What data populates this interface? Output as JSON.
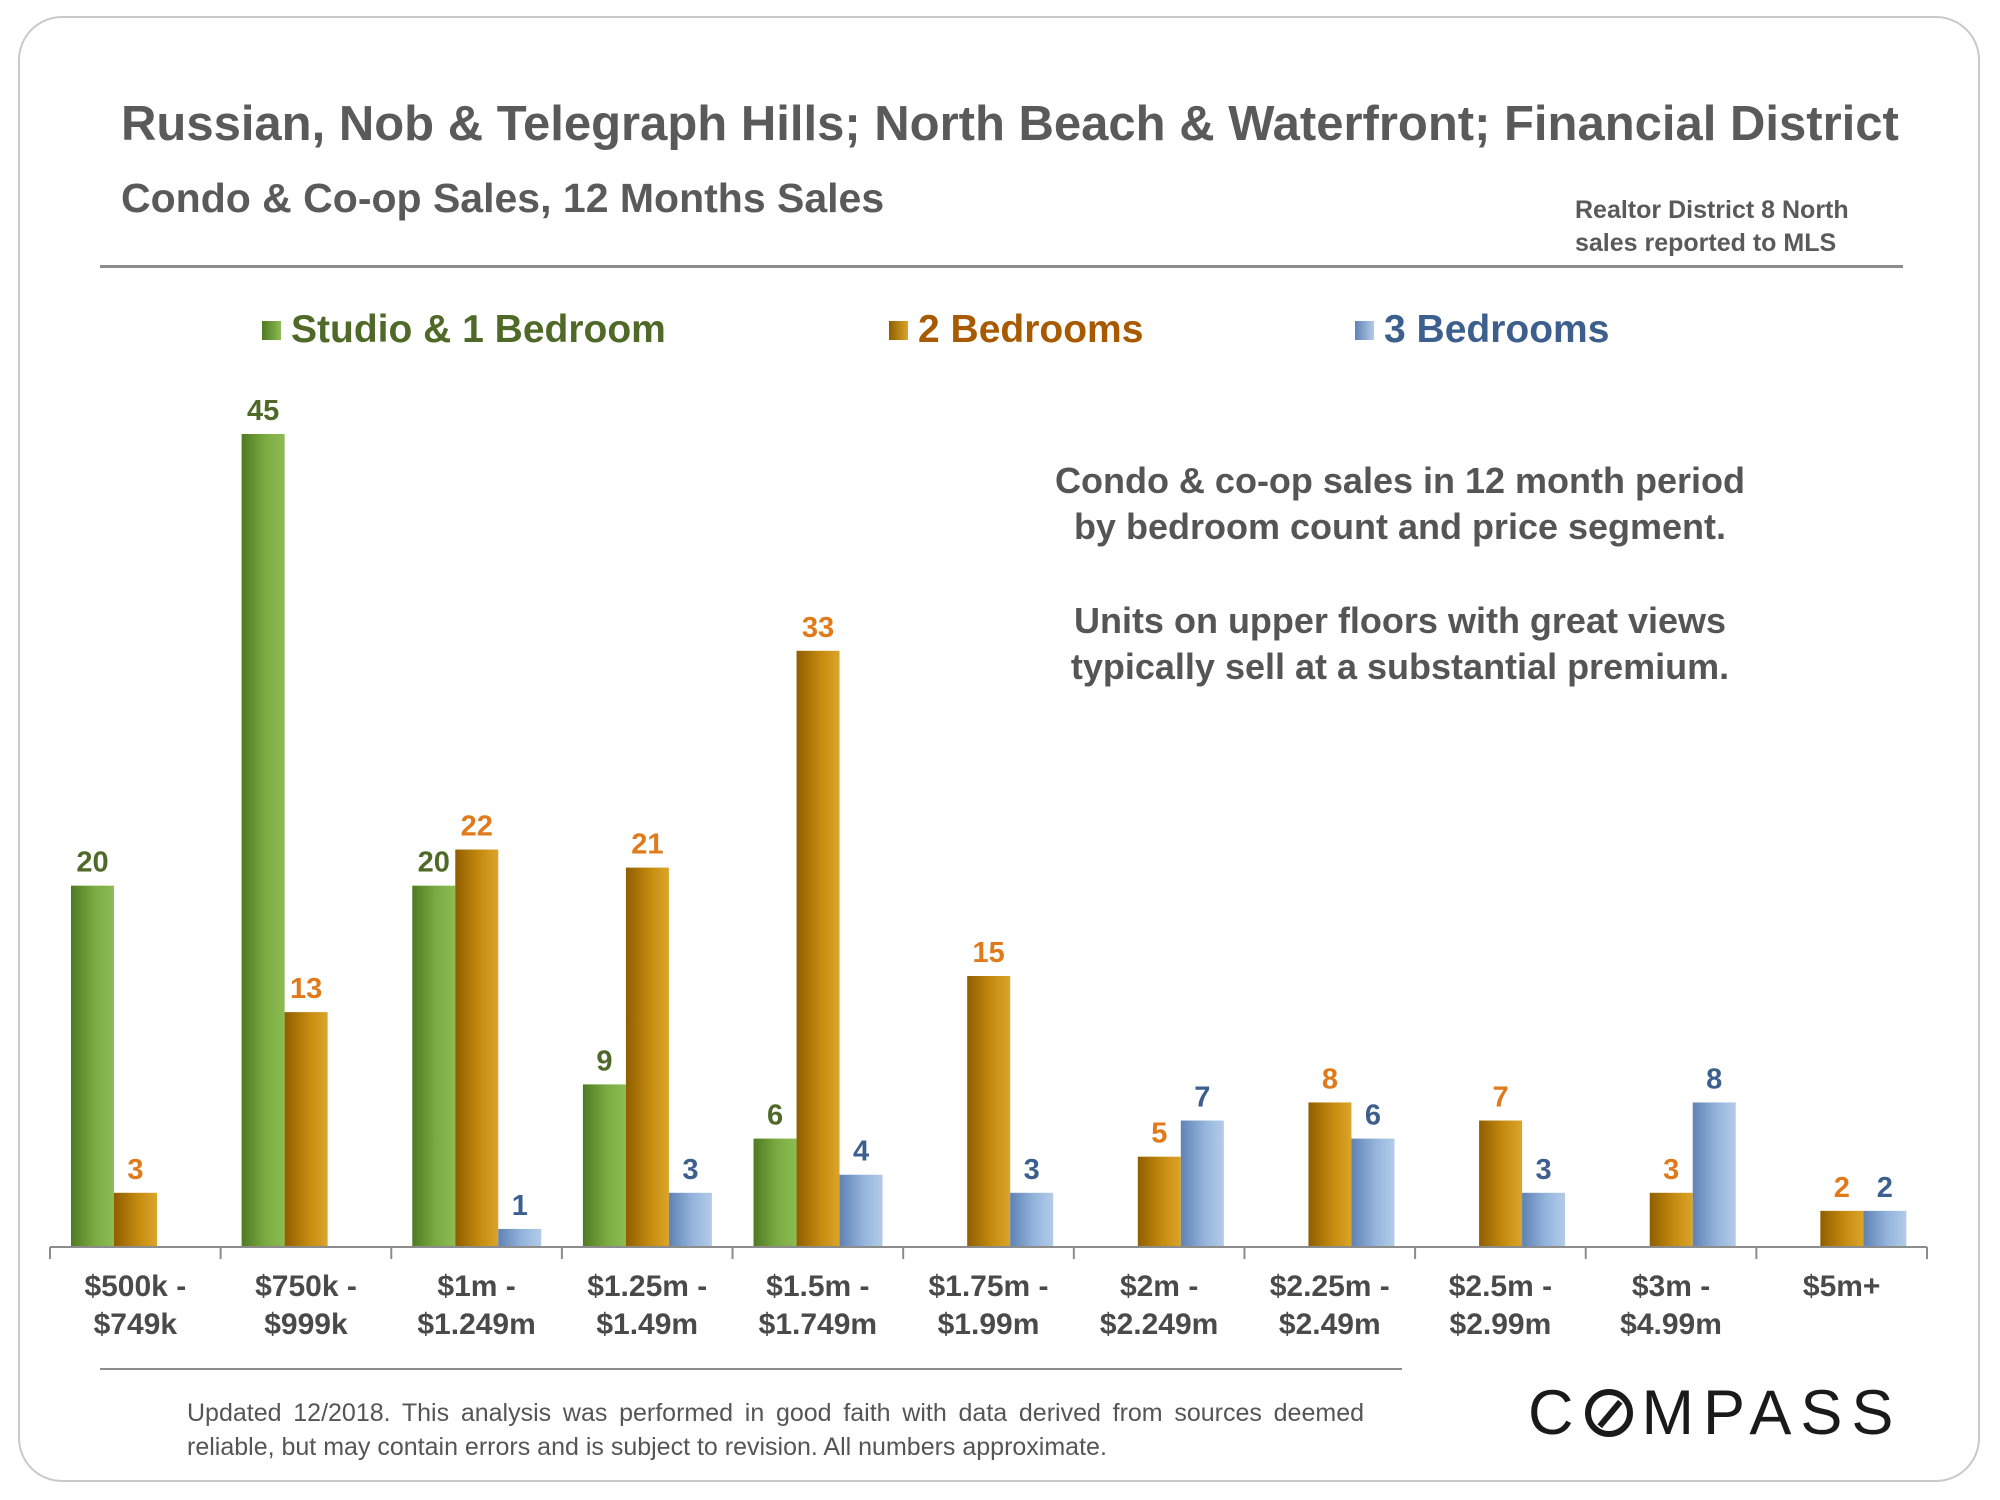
{
  "header": {
    "title": "Russian, Nob & Telegraph Hills; North Beach & Waterfront; Financial District",
    "subtitle": "Condo & Co-op Sales, 12 Months Sales",
    "source_line1": "Realtor District 8 North",
    "source_line2": "sales reported to MLS"
  },
  "annotation": {
    "line1": "Condo & co-op sales in 12 month period",
    "line2": "by bedroom count and price segment.",
    "line3": "Units on upper floors with great views",
    "line4": "typically sell at a substantial premium."
  },
  "footer": {
    "note": "Updated 12/2018. This analysis was performed in good faith with data derived from sources deemed reliable, but may contain errors and is subject to revision. All numbers approximate.",
    "logo_prefix": "C",
    "logo_suffix": "MPASS"
  },
  "colors": {
    "studio": "#6e9a3c",
    "studio_label": "#4f6a28",
    "two_bed": "#c48a0e",
    "two_bed_legend": "#a85a00",
    "two_bed_label": "#e07a1a",
    "three_bed": "#8fb0d8",
    "three_bed_label": "#3d5f8e"
  },
  "chart_data": {
    "type": "bar",
    "title": "Condo & Co-op Sales, 12 Months Sales",
    "xlabel": "",
    "ylabel": "",
    "ylim": [
      0,
      45
    ],
    "legend_position": "top",
    "categories": [
      [
        "$500k -",
        "$749k"
      ],
      [
        "$750k -",
        "$999k"
      ],
      [
        "$1m -",
        "$1.249m"
      ],
      [
        "$1.25m -",
        "$1.49m"
      ],
      [
        "$1.5m -",
        "$1.749m"
      ],
      [
        "$1.75m -",
        "$1.99m"
      ],
      [
        "$2m -",
        "$2.249m"
      ],
      [
        "$2.25m -",
        "$2.49m"
      ],
      [
        "$2.5m -",
        "$2.99m"
      ],
      [
        "$3m -",
        "$4.99m"
      ],
      [
        "$5m+",
        ""
      ]
    ],
    "series": [
      {
        "name": "Studio & 1 Bedroom",
        "values": [
          20,
          45,
          20,
          9,
          6,
          null,
          null,
          null,
          null,
          null,
          null
        ]
      },
      {
        "name": "2 Bedrooms",
        "values": [
          3,
          13,
          22,
          21,
          33,
          15,
          5,
          8,
          7,
          3,
          2
        ]
      },
      {
        "name": "3 Bedrooms",
        "values": [
          null,
          null,
          1,
          3,
          4,
          3,
          7,
          6,
          3,
          8,
          2
        ]
      }
    ]
  }
}
